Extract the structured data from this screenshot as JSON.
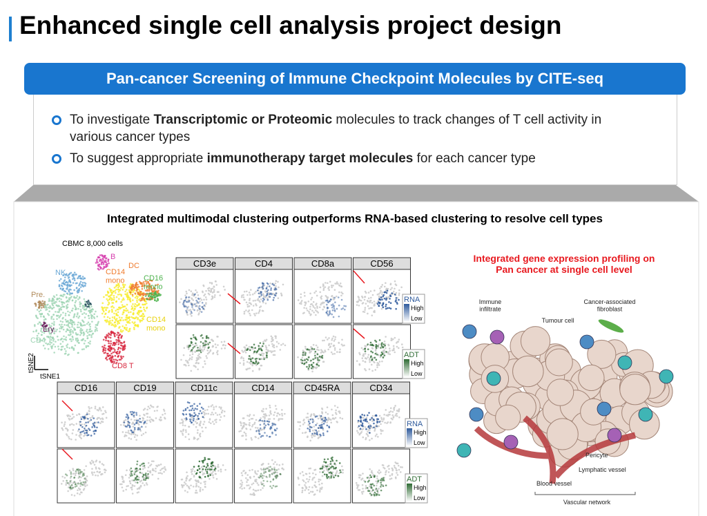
{
  "header": {
    "title": "Enhanced single cell analysis project design"
  },
  "banner": {
    "text": "Pan-cancer Screening of Immune Checkpoint Molecules by CITE-seq"
  },
  "bullets": [
    [
      {
        "text": "To investigate ",
        "bold": false
      },
      {
        "text": "Transcriptomic or Proteomic",
        "bold": true
      },
      {
        "text": " molecules to track changes of T cell activity in various cancer types",
        "bold": false
      }
    ],
    [
      {
        "text": "To suggest appropriate ",
        "bold": false
      },
      {
        "text": "immunotherapy target molecules",
        "bold": true
      },
      {
        "text": " for each cancer type",
        "bold": false
      }
    ]
  ],
  "figure": {
    "heading": "Integrated multimodal clustering outperforms RNA-based clustering to resolve cell types",
    "tsne": {
      "caption": "CBMC 8,000 cells",
      "clusters": [
        "B",
        "NK",
        "CD14\nmono",
        "DC",
        "CD16\nmono",
        "Pre.",
        "Ery.",
        "CD4 T",
        "CD14\nmono",
        "CD8 T"
      ],
      "axis_y": "tSNE2",
      "axis_x": "tSNE1"
    },
    "panel_rows": [
      [
        "CD3e",
        "CD4",
        "CD8a",
        "CD56"
      ],
      [
        "CD16",
        "CD19",
        "CD11c",
        "CD14",
        "CD45RA",
        "CD34"
      ]
    ],
    "rna_legend": {
      "label": "RNA",
      "high": "High",
      "low": "Low"
    },
    "adt_legend": {
      "label": "ADT",
      "high": "High",
      "low": "Low"
    }
  },
  "diagram": {
    "heading": "Integrated gene expression profiling on Pan cancer at single cell level",
    "labels": {
      "immune": "Immune\ninfiltrate",
      "fibroblast": "Cancer-associated\nfibroblast",
      "tumour": "Tumour cell",
      "pericyte": "Pericyte",
      "lymphatic": "Lymphatic vessel",
      "blood": "Blood vessel",
      "vascular": "Vascular network"
    }
  }
}
